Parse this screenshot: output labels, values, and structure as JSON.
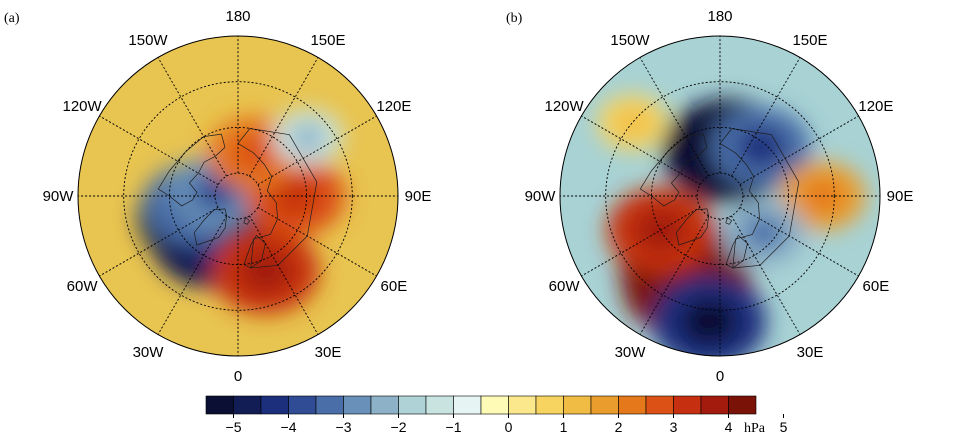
{
  "panels": [
    {
      "label": "(a)",
      "lon_labels": [
        "150E",
        "120E",
        "90E",
        "60E",
        "30E",
        "0",
        "30W",
        "60W",
        "90W",
        "120W",
        "150W",
        "180"
      ],
      "field": {
        "background": "#e8c450",
        "blobs": [
          {
            "lon": 300,
            "lat": 72,
            "value": -5,
            "note": "strong low"
          },
          {
            "lon": 330,
            "lat": 68,
            "value": -4.5
          },
          {
            "lon": 0,
            "lat": 78,
            "value": -4
          },
          {
            "lon": 280,
            "lat": 70,
            "value": -3
          },
          {
            "lon": 260,
            "lat": 80,
            "value": -2.5
          },
          {
            "lon": 90,
            "lat": 65,
            "value": 3
          },
          {
            "lon": 20,
            "lat": 55,
            "value": 3.5
          },
          {
            "lon": 160,
            "lat": 70,
            "value": 2.5
          },
          {
            "lon": 130,
            "lat": 50,
            "value": -1
          }
        ]
      }
    },
    {
      "label": "(b)",
      "lon_labels": [
        "150E",
        "120E",
        "90E",
        "60E",
        "30E",
        "0",
        "30W",
        "60W",
        "90W",
        "120W",
        "150W",
        "180"
      ],
      "field": {
        "background": "#a8d2d4",
        "blobs": [
          {
            "lon": 170,
            "lat": 70,
            "value": -5,
            "note": "strong low"
          },
          {
            "lon": 140,
            "lat": 62,
            "value": -3
          },
          {
            "lon": 330,
            "lat": 55,
            "value": 4.5,
            "note": "high"
          },
          {
            "lon": 340,
            "lat": 48,
            "value": 5
          },
          {
            "lon": 300,
            "lat": 60,
            "value": 3.5
          },
          {
            "lon": 90,
            "lat": 45,
            "value": 2
          },
          {
            "lon": 230,
            "lat": 40,
            "value": 1
          },
          {
            "lon": 50,
            "lat": 65,
            "value": -2
          },
          {
            "lon": 355,
            "lat": 35,
            "value": -4
          }
        ]
      }
    }
  ],
  "colorbar": {
    "ticks": [
      "−5",
      "−4",
      "−3",
      "−2",
      "−1",
      "0",
      "1",
      "2",
      "3",
      "4",
      "5"
    ],
    "unit": "hPa",
    "colors": [
      "#0b0f33",
      "#121c55",
      "#1c2f7d",
      "#2f4c94",
      "#4a6ea8",
      "#6890b8",
      "#8db2c8",
      "#aed2d6",
      "#c8e3e0",
      "#e6f4f4",
      "#fdfbb6",
      "#fbe88c",
      "#f7d35f",
      "#f0bc43",
      "#ea9d2c",
      "#e5781b",
      "#dc5115",
      "#c63010",
      "#a21b0c",
      "#7a1208"
    ]
  },
  "colorbar_levels": [
    -5,
    -4.5,
    -4,
    -3.5,
    -3,
    -2.5,
    -2,
    -1.5,
    -1,
    -0.5,
    0,
    0.5,
    1,
    1.5,
    2,
    2.5,
    3,
    3.5,
    4,
    4.5,
    5
  ]
}
